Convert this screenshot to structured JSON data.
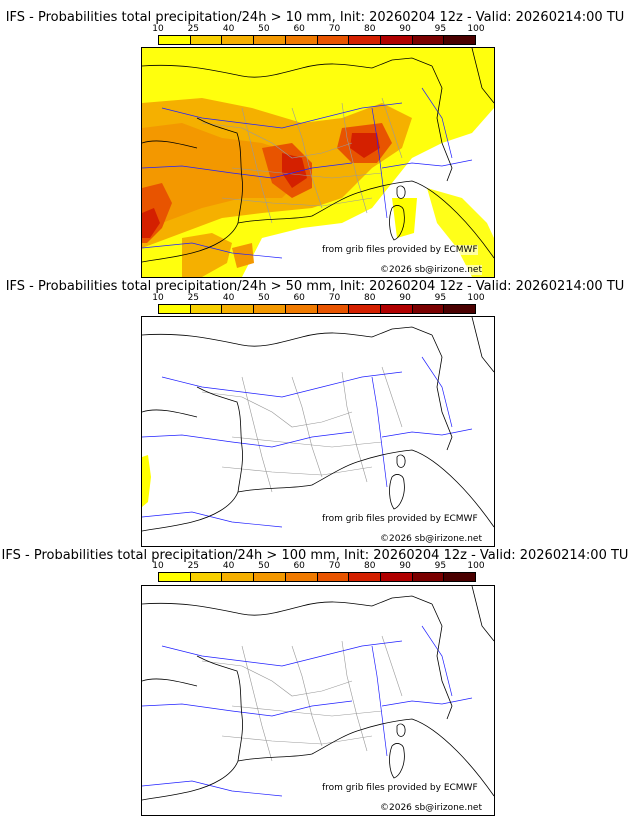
{
  "panels": [
    {
      "title": "IFS - Probabilities total precipitation/24h > 10 mm, Init: 20260204 12z - Valid: 20260214:00 TU",
      "threshold_mm": 10
    },
    {
      "title": "IFS - Probabilities total precipitation/24h > 50 mm, Init: 20260204 12z - Valid: 20260214:00 TU",
      "threshold_mm": 50
    },
    {
      "title": "IFS - Probabilities total precipitation/24h > 100 mm, Init: 20260204 12z - Valid: 20260214:00 TU",
      "threshold_mm": 100
    }
  ],
  "colorbar": {
    "labels": [
      "10",
      "25",
      "40",
      "50",
      "60",
      "70",
      "80",
      "90",
      "95",
      "100"
    ],
    "colors": [
      "#ffff00",
      "#f7d000",
      "#f5b000",
      "#f39800",
      "#f07a00",
      "#e85400",
      "#d42000",
      "#b00000",
      "#7a0000",
      "#4a0000"
    ]
  },
  "credits": {
    "source": "from grib files provided by ECMWF",
    "copyright": "©2026 sb@irizone.net"
  },
  "map_colors": {
    "coast": "#000000",
    "borders": "#000000",
    "regions": "#9a9a9a",
    "rivers": "#2020ff"
  }
}
